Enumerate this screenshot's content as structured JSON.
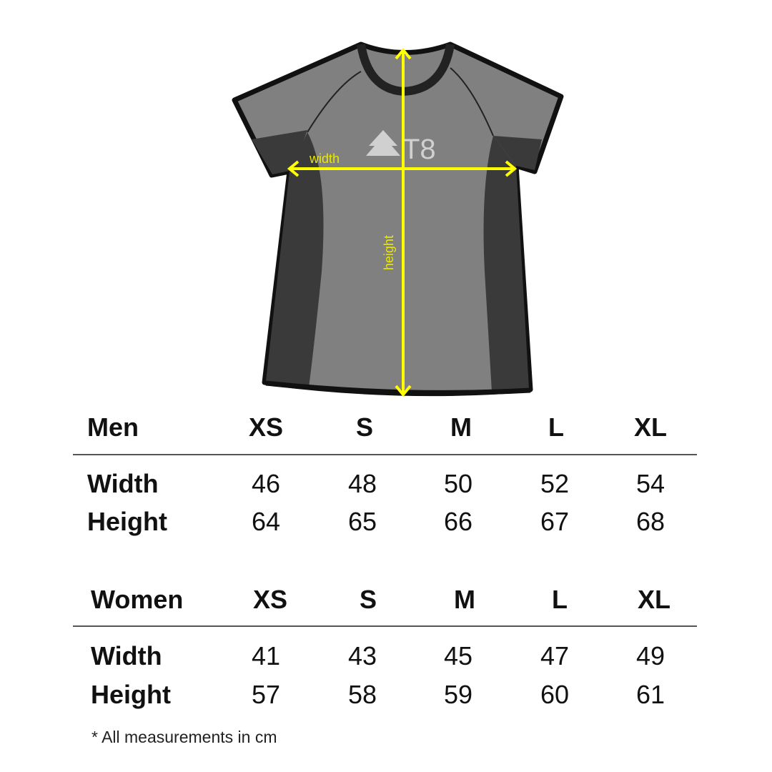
{
  "illustration": {
    "logo_text": "T8",
    "width_label": "width",
    "height_label": "height",
    "colors": {
      "body": "#808080",
      "panel": "#3a3a3a",
      "outline": "#111111",
      "arrow": "#ffff00"
    }
  },
  "sizes": [
    "XS",
    "S",
    "M",
    "L",
    "XL"
  ],
  "men": {
    "title": "Men",
    "rows": [
      {
        "label": "Width",
        "values": [
          "46",
          "48",
          "50",
          "52",
          "54"
        ]
      },
      {
        "label": "Height",
        "values": [
          "64",
          "65",
          "66",
          "67",
          "68"
        ]
      }
    ]
  },
  "women": {
    "title": "Women",
    "rows": [
      {
        "label": "Width",
        "values": [
          "41",
          "43",
          "45",
          "47",
          "49"
        ]
      },
      {
        "label": "Height",
        "values": [
          "57",
          "58",
          "59",
          "60",
          "61"
        ]
      }
    ]
  },
  "footnote": "* All measurements in cm"
}
